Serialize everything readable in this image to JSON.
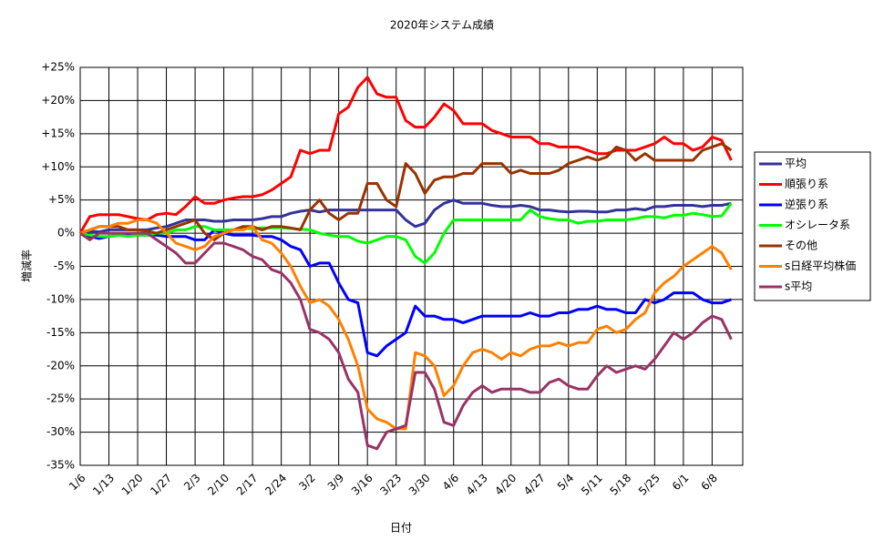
{
  "chart_data": {
    "type": "line",
    "title": "2020年システム成績",
    "x_label": "日付",
    "y_label": "増減率",
    "categories": [
      "1/6",
      null,
      null,
      "1/13",
      null,
      null,
      "1/20",
      null,
      null,
      "1/27",
      null,
      null,
      "2/3",
      null,
      null,
      "2/10",
      null,
      null,
      "2/17",
      null,
      null,
      "2/24",
      null,
      null,
      "3/2",
      null,
      null,
      "3/9",
      null,
      null,
      "3/16",
      null,
      null,
      "3/23",
      null,
      null,
      "3/30",
      null,
      null,
      "4/6",
      null,
      null,
      "4/13",
      null,
      null,
      "4/20",
      null,
      null,
      "4/27",
      null,
      null,
      "5/4",
      null,
      null,
      "5/11",
      null,
      null,
      "5/18",
      null,
      null,
      "5/25",
      null,
      null,
      "6/1",
      null,
      null,
      "6/8",
      null,
      null
    ],
    "ylim": [
      -35,
      25
    ],
    "yticks": [
      {
        "value": 25,
        "label": "+25%"
      },
      {
        "value": 20,
        "label": "+20%"
      },
      {
        "value": 15,
        "label": "+15%"
      },
      {
        "value": 10,
        "label": "+10%"
      },
      {
        "value": 5,
        "label": "+5%"
      },
      {
        "value": 0,
        "label": "0%"
      },
      {
        "value": -5,
        "label": "-5%"
      },
      {
        "value": -10,
        "label": "-10%"
      },
      {
        "value": -15,
        "label": "-15%"
      },
      {
        "value": -20,
        "label": "-20%"
      },
      {
        "value": -25,
        "label": "-25%"
      },
      {
        "value": -30,
        "label": "-30%"
      },
      {
        "value": -35,
        "label": "-35%"
      }
    ],
    "grid": true,
    "legend": "right",
    "series": [
      {
        "name": "平均",
        "color": "#333399",
        "values": [
          0,
          0.3,
          0.2,
          0.5,
          0.5,
          0.5,
          0.5,
          0.5,
          0.8,
          1,
          1.5,
          2,
          2,
          2,
          1.8,
          1.8,
          2,
          2,
          2,
          2.2,
          2.5,
          2.5,
          3,
          3.3,
          3.5,
          3.2,
          3.5,
          3.5,
          3.5,
          3.5,
          3.5,
          3.5,
          3.5,
          3.5,
          2,
          1,
          1.5,
          3.5,
          4.5,
          5,
          4.5,
          4.5,
          4.5,
          4.2,
          4,
          4,
          4.2,
          4,
          3.5,
          3.5,
          3.3,
          3.2,
          3.3,
          3.3,
          3.2,
          3.2,
          3.5,
          3.5,
          3.7,
          3.5,
          4,
          4,
          4.2,
          4.2,
          4.2,
          4,
          4.2,
          4.2,
          4.5
        ]
      },
      {
        "name": "順張り系",
        "color": "#ff0000",
        "values": [
          0,
          2.5,
          2.8,
          2.8,
          2.8,
          2.5,
          2.2,
          2,
          2.8,
          3,
          2.8,
          4,
          5.5,
          4.5,
          4.5,
          5,
          5.3,
          5.5,
          5.5,
          5.8,
          6.5,
          7.5,
          8.5,
          12.5,
          12,
          12.5,
          12.5,
          18,
          19,
          22,
          23.5,
          21,
          20.5,
          20.5,
          17,
          16,
          16,
          17.5,
          19.5,
          18.5,
          16.5,
          16.5,
          16.5,
          15.5,
          15,
          14.5,
          14.5,
          14.5,
          13.5,
          13.5,
          13,
          13,
          13,
          12.5,
          12,
          12,
          12.5,
          12.5,
          12.5,
          13,
          13.5,
          14.5,
          13.5,
          13.5,
          12.5,
          13,
          14.5,
          14,
          11
        ]
      },
      {
        "name": "逆張り系",
        "color": "#0000ff",
        "values": [
          0,
          -0.5,
          -0.8,
          -0.5,
          -0.3,
          -0.3,
          -0.3,
          -0.3,
          -0.3,
          -0.5,
          -0.5,
          -0.5,
          -1,
          -1,
          0.5,
          0,
          -0.3,
          -0.3,
          -0.3,
          -0.5,
          -0.5,
          -1,
          -2,
          -2.5,
          -5,
          -4.5,
          -4.5,
          -7.5,
          -10,
          -10.5,
          -18,
          -18.5,
          -17,
          -16,
          -15,
          -11,
          -12.5,
          -12.5,
          -13,
          -13,
          -13.5,
          -13,
          -12.5,
          -12.5,
          -12.5,
          -12.5,
          -12.5,
          -12,
          -12.5,
          -12.5,
          -12,
          -12,
          -11.5,
          -11.5,
          -11,
          -11.5,
          -11.5,
          -12,
          -12,
          -10,
          -10.5,
          -10,
          -9,
          -9,
          -9,
          -10,
          -10.5,
          -10.5,
          -10
        ]
      },
      {
        "name": "オシレータ系",
        "color": "#00ff00",
        "values": [
          0,
          -0.3,
          -0.5,
          -0.5,
          -0.3,
          -0.5,
          -0.3,
          -0.3,
          0,
          0,
          0.5,
          0.5,
          1,
          1,
          0.5,
          0.5,
          0.5,
          0.7,
          0.7,
          0.8,
          0.8,
          0.8,
          0.7,
          0.6,
          0.5,
          0,
          -0.3,
          -0.5,
          -0.5,
          -1.2,
          -1.5,
          -1,
          -0.5,
          -0.5,
          -1,
          -3.5,
          -4.5,
          -3,
          0,
          2,
          2,
          2,
          2,
          2,
          2,
          2,
          2,
          3.5,
          2.5,
          2.2,
          2,
          2,
          1.5,
          1.8,
          1.8,
          2,
          2,
          2,
          2.2,
          2.5,
          2.5,
          2.3,
          2.7,
          2.7,
          3,
          2.8,
          2.5,
          2.6,
          4.5
        ]
      },
      {
        "name": "その他",
        "color": "#993300",
        "values": [
          0,
          0.5,
          1,
          1,
          1,
          0.5,
          0.5,
          0.3,
          0,
          0.5,
          1,
          1.5,
          2,
          0,
          -1,
          0,
          0.5,
          1,
          1,
          0.5,
          1,
          1,
          0.8,
          0.5,
          3.5,
          5,
          3,
          2,
          3,
          3,
          7.5,
          7.5,
          5,
          4,
          10.5,
          9,
          6,
          8,
          8.5,
          8.5,
          9,
          9,
          10.5,
          10.5,
          10.5,
          9,
          9.5,
          9,
          9,
          9,
          9.5,
          10.5,
          11,
          11.5,
          11,
          11.5,
          13,
          12.5,
          11,
          12,
          11,
          11,
          11,
          11,
          11,
          12.5,
          13,
          13.5,
          12.5
        ]
      },
      {
        "name": "s日経平均株価",
        "color": "#ff8000",
        "values": [
          0,
          0.5,
          1,
          1,
          1.5,
          1.5,
          2,
          2,
          1.5,
          0,
          -1.5,
          -2,
          -2.5,
          -2,
          -0.5,
          0,
          0.5,
          0.5,
          1,
          -1,
          -1.5,
          -3,
          -5,
          -8,
          -10.5,
          -10,
          -11,
          -13,
          -16,
          -20,
          -26.5,
          -28,
          -28.5,
          -29.5,
          -29.5,
          -18,
          -18.5,
          -20,
          -24.5,
          -23,
          -20,
          -18,
          -17.5,
          -18,
          -19,
          -18,
          -18.5,
          -17.5,
          -17,
          -17,
          -16.5,
          -17,
          -16.5,
          -16.5,
          -14.5,
          -14,
          -15,
          -14.5,
          -13,
          -12,
          -9,
          -7.5,
          -6.5,
          -5,
          -4,
          -3,
          -2,
          -3,
          -5.5
        ]
      },
      {
        "name": "s平均",
        "color": "#993366",
        "values": [
          0,
          -1,
          0,
          0,
          0,
          0,
          0,
          0,
          -1,
          -2,
          -3,
          -4.5,
          -4.5,
          -3,
          -1.5,
          -1.5,
          -2,
          -2.5,
          -3.5,
          -4,
          -5.5,
          -6,
          -7.5,
          -10,
          -14.5,
          -15,
          -16,
          -18,
          -22,
          -24,
          -32,
          -32.5,
          -30,
          -29.5,
          -29,
          -21,
          -21,
          -23.5,
          -28.5,
          -29,
          -26,
          -24,
          -23,
          -24,
          -23.5,
          -23.5,
          -23.5,
          -24,
          -24,
          -22.5,
          -22,
          -23,
          -23.5,
          -23.5,
          -21.5,
          -20,
          -21,
          -20.5,
          -20,
          -20.5,
          -19,
          -17,
          -15,
          -16,
          -15,
          -13.5,
          -12.5,
          -13,
          -16
        ]
      }
    ]
  }
}
